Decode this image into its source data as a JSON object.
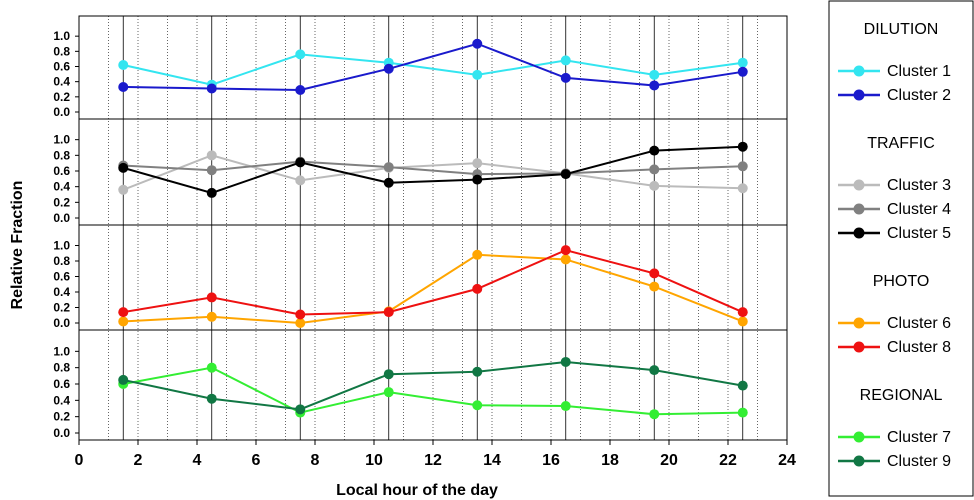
{
  "chart_data": {
    "type": "line",
    "xlabel": "Local hour of the day",
    "ylabel": "Relative Fraction",
    "x_ticks": [
      0,
      2,
      4,
      6,
      8,
      10,
      12,
      14,
      16,
      18,
      20,
      22,
      24
    ],
    "xlim": [
      0,
      24
    ],
    "y_ticks": [
      "0.0",
      "0.2",
      "0.4",
      "0.6",
      "0.8",
      "1.0"
    ],
    "ylim": [
      0,
      1.2
    ],
    "x": [
      1.5,
      4.5,
      7.5,
      10.5,
      13.5,
      16.5,
      19.5,
      22.5
    ],
    "grid": "vertical lines every hour (dotted) and every 3 hours starting at 1.5 (solid)",
    "legend_placement": "right",
    "panels": [
      {
        "group": "DILUTION",
        "series": [
          {
            "name": "Cluster 1",
            "color": "#33e5f0",
            "values": [
              0.62,
              0.36,
              0.76,
              0.65,
              0.49,
              0.68,
              0.49,
              0.65
            ]
          },
          {
            "name": "Cluster 2",
            "color": "#1a1acc",
            "values": [
              0.33,
              0.31,
              0.29,
              0.57,
              0.9,
              0.45,
              0.35,
              0.53
            ]
          }
        ]
      },
      {
        "group": "TRAFFIC",
        "series": [
          {
            "name": "Cluster 3",
            "color": "#bbbbbb",
            "values": [
              0.36,
              0.8,
              0.48,
              0.64,
              0.7,
              0.57,
              0.41,
              0.38
            ]
          },
          {
            "name": "Cluster 4",
            "color": "#808080",
            "values": [
              0.67,
              0.61,
              0.72,
              0.65,
              0.56,
              0.57,
              0.62,
              0.66
            ]
          },
          {
            "name": "Cluster 5",
            "color": "#000000",
            "values": [
              0.64,
              0.32,
              0.71,
              0.45,
              0.49,
              0.56,
              0.86,
              0.91
            ]
          }
        ]
      },
      {
        "group": "PHOTO",
        "series": [
          {
            "name": "Cluster 6",
            "color": "#ffa500",
            "values": [
              0.02,
              0.08,
              0.0,
              0.15,
              0.88,
              0.82,
              0.47,
              0.02
            ]
          },
          {
            "name": "Cluster 8",
            "color": "#ee1111",
            "values": [
              0.14,
              0.33,
              0.11,
              0.14,
              0.44,
              0.94,
              0.64,
              0.14
            ]
          }
        ]
      },
      {
        "group": "REGIONAL",
        "series": [
          {
            "name": "Cluster 7",
            "color": "#33ee33",
            "values": [
              0.6,
              0.8,
              0.25,
              0.5,
              0.34,
              0.33,
              0.23,
              0.25
            ]
          },
          {
            "name": "Cluster 9",
            "color": "#117744",
            "values": [
              0.65,
              0.42,
              0.29,
              0.72,
              0.75,
              0.87,
              0.77,
              0.58
            ]
          }
        ]
      }
    ]
  }
}
